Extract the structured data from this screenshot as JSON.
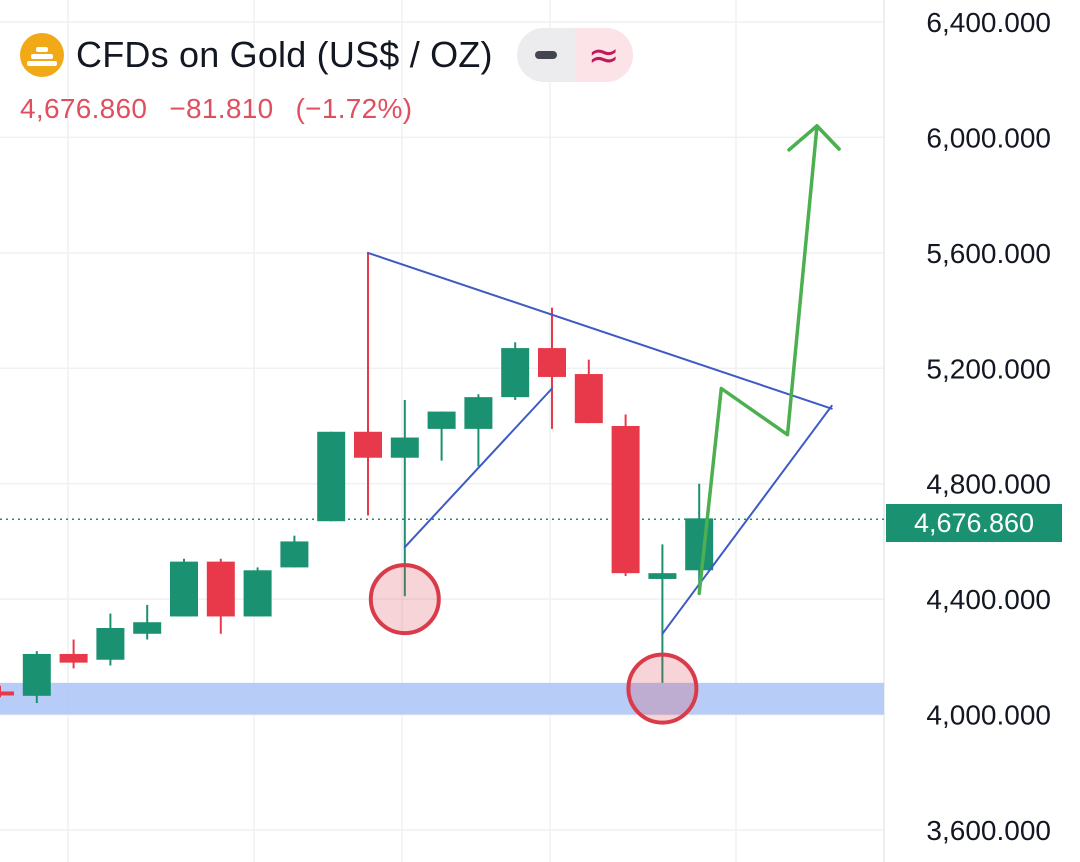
{
  "header": {
    "title": "CFDs on Gold (US$ / OZ)",
    "last": "4,676.860",
    "change": "−81.810",
    "change_pct": "(−1.72%)",
    "icons": [
      "gold-bars-icon",
      "minus-icon",
      "approx-icon"
    ]
  },
  "price_label": "4,676.860",
  "colors": {
    "up": "#1a9170",
    "down": "#e8394a",
    "trend": "#3d5bc4",
    "projection": "#4caf50",
    "support_zone": "#aac4f7",
    "circle": "#d93b4a"
  },
  "chart_data": {
    "type": "candlestick",
    "y_ticks": [
      "6,400.000",
      "6,000.000",
      "5,600.000",
      "5,200.000",
      "4,800.000",
      "4,400.000",
      "4,000.000",
      "3,600.000"
    ],
    "ylim": [
      3600,
      6400
    ],
    "last_price": 4676.86,
    "candles": [
      {
        "o": 4080,
        "h": 4100,
        "l": 4060,
        "c": 4070
      },
      {
        "o": 4065,
        "h": 4220,
        "l": 4040,
        "c": 4210
      },
      {
        "o": 4210,
        "h": 4260,
        "l": 4160,
        "c": 4180
      },
      {
        "o": 4190,
        "h": 4350,
        "l": 4170,
        "c": 4300
      },
      {
        "o": 4280,
        "h": 4380,
        "l": 4260,
        "c": 4320
      },
      {
        "o": 4340,
        "h": 4540,
        "l": 4340,
        "c": 4530
      },
      {
        "o": 4530,
        "h": 4540,
        "l": 4280,
        "c": 4340
      },
      {
        "o": 4340,
        "h": 4510,
        "l": 4340,
        "c": 4500
      },
      {
        "o": 4510,
        "h": 4620,
        "l": 4510,
        "c": 4600
      },
      {
        "o": 4670,
        "h": 4980,
        "l": 4670,
        "c": 4980
      },
      {
        "o": 4980,
        "h": 5600,
        "l": 4690,
        "c": 4890
      },
      {
        "o": 4890,
        "h": 5090,
        "l": 4410,
        "c": 4960
      },
      {
        "o": 4990,
        "h": 5050,
        "l": 4880,
        "c": 5050
      },
      {
        "o": 4990,
        "h": 5110,
        "l": 4860,
        "c": 5100
      },
      {
        "o": 5100,
        "h": 5290,
        "l": 5090,
        "c": 5270
      },
      {
        "o": 5270,
        "h": 5410,
        "l": 4990,
        "c": 5170
      },
      {
        "o": 5180,
        "h": 5230,
        "l": 5010,
        "c": 5010
      },
      {
        "o": 5000,
        "h": 5040,
        "l": 4480,
        "c": 4490
      },
      {
        "o": 4470,
        "h": 4590,
        "l": 4110,
        "c": 4490
      },
      {
        "o": 4500,
        "h": 4800,
        "l": 4420,
        "c": 4680
      }
    ],
    "support_zone": [
      4000,
      4110
    ],
    "upper_trendline": [
      [
        10,
        5600
      ],
      [
        22.6,
        5060
      ]
    ],
    "lower_trendline_1": [
      [
        11,
        4580
      ],
      [
        15,
        5130
      ]
    ],
    "lower_trendline_2": [
      [
        18,
        4280
      ],
      [
        22.6,
        5070
      ]
    ],
    "projection_path": [
      [
        19,
        4420
      ],
      [
        19.6,
        5130
      ],
      [
        21.4,
        4970
      ],
      [
        22.2,
        6040
      ],
      [
        22.8,
        5960
      ]
    ],
    "marked_lows": [
      [
        11,
        4400
      ],
      [
        18,
        4090
      ]
    ]
  }
}
